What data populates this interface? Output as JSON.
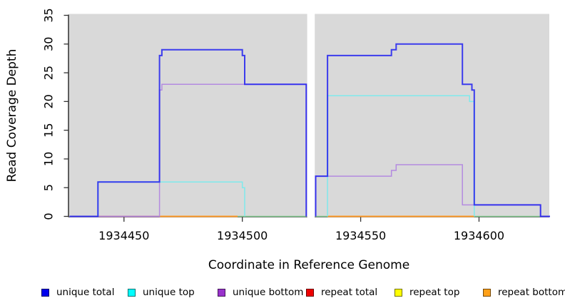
{
  "chart_data": {
    "type": "line",
    "subtype": "step-coverage",
    "title": "",
    "xlabel": "Coordinate in Reference Genome",
    "ylabel": "Read Coverage Depth",
    "xlim": [
      1934426.7,
      1934629.7
    ],
    "ylim": [
      0,
      35
    ],
    "x_ticks": [
      1934450,
      1934500,
      1934550,
      1934600
    ],
    "y_ticks": [
      0,
      5,
      10,
      15,
      20,
      25,
      30,
      35
    ],
    "grid": false,
    "plot_bg": "#d9d9d9",
    "gap_region": {
      "x_from": 1934527.4,
      "x_to": 1934530.6,
      "note": "white band, no data"
    },
    "series": [
      {
        "id": "repeat-total",
        "name": "repeat total",
        "color": "#cc2244",
        "width": 1.6,
        "opacity": 1,
        "segments": [
          [
            [
              1934439,
              0
            ],
            [
              1934465,
              0
            ]
          ]
        ]
      },
      {
        "id": "repeat-top",
        "name": "repeat top",
        "color": "#ffff00",
        "width": 1.6,
        "opacity": 1,
        "segments": []
      },
      {
        "id": "repeat-bottom",
        "name": "repeat bottom",
        "color": "#ff9a28",
        "width": 2,
        "opacity": 1,
        "segments": [
          [
            [
              1934465,
              0
            ],
            [
              1934498,
              0
            ]
          ],
          [
            [
              1934536,
              0
            ],
            [
              1934598,
              0
            ]
          ]
        ]
      },
      {
        "id": "zero-coverage",
        "name": "zero coverage marker",
        "color": "#82c98e",
        "width": 1.6,
        "opacity": 1,
        "segments": [
          [
            [
              1934498,
              0
            ],
            [
              1934527,
              0
            ]
          ],
          [
            [
              1934531,
              0
            ],
            [
              1934536,
              0
            ]
          ],
          [
            [
              1934598,
              0
            ],
            [
              1934630,
              0
            ]
          ]
        ]
      },
      {
        "id": "unique-bottom",
        "name": "unique bottom",
        "color": "#b48ae0",
        "width": 1.5,
        "opacity": 1,
        "segments": [
          [
            [
              1934427,
              0
            ],
            [
              1934465,
              0
            ],
            [
              1934465,
              22
            ],
            [
              1934466,
              22
            ],
            [
              1934466,
              23
            ],
            [
              1934527,
              23
            ],
            [
              1934527,
              0
            ]
          ],
          [
            [
              1934531,
              0
            ],
            [
              1934531,
              7
            ],
            [
              1934563,
              7
            ],
            [
              1934563,
              8
            ],
            [
              1934565,
              8
            ],
            [
              1934565,
              9
            ],
            [
              1934593,
              9
            ],
            [
              1934593,
              2
            ],
            [
              1934626,
              2
            ],
            [
              1934626,
              0
            ],
            [
              1934630,
              0
            ]
          ]
        ]
      },
      {
        "id": "unique-top",
        "name": "unique top",
        "color": "#7fe9ec",
        "width": 1.5,
        "opacity": 1,
        "segments": [
          [
            [
              1934439,
              0
            ],
            [
              1934439,
              6
            ],
            [
              1934500,
              6
            ],
            [
              1934500,
              5
            ],
            [
              1934501,
              5
            ],
            [
              1934501,
              0
            ]
          ],
          [
            [
              1934536,
              0
            ],
            [
              1934536,
              21
            ],
            [
              1934596,
              21
            ],
            [
              1934596,
              20
            ],
            [
              1934598,
              20
            ],
            [
              1934598,
              0
            ]
          ]
        ]
      },
      {
        "id": "unique-total",
        "name": "unique total",
        "color": "#2020f0",
        "width": 2,
        "opacity": 0.85,
        "segments": [
          [
            [
              1934427,
              0
            ],
            [
              1934439,
              0
            ],
            [
              1934439,
              6
            ],
            [
              1934465,
              6
            ],
            [
              1934465,
              28
            ],
            [
              1934466,
              28
            ],
            [
              1934466,
              29
            ],
            [
              1934500,
              29
            ],
            [
              1934500,
              28
            ],
            [
              1934501,
              28
            ],
            [
              1934501,
              23
            ],
            [
              1934527,
              23
            ],
            [
              1934527,
              0
            ]
          ],
          [
            [
              1934531,
              0
            ],
            [
              1934531,
              7
            ],
            [
              1934536,
              7
            ],
            [
              1934536,
              28
            ],
            [
              1934563,
              28
            ],
            [
              1934563,
              29
            ],
            [
              1934565,
              29
            ],
            [
              1934565,
              30
            ],
            [
              1934593,
              30
            ],
            [
              1934593,
              23
            ],
            [
              1934597,
              23
            ],
            [
              1934597,
              22
            ],
            [
              1934598,
              22
            ],
            [
              1934598,
              2
            ],
            [
              1934626,
              2
            ],
            [
              1934626,
              0
            ],
            [
              1934630,
              0
            ]
          ]
        ]
      }
    ],
    "legend": {
      "position": "bottom",
      "entries": [
        {
          "label": "unique total",
          "fill": "#0000ee"
        },
        {
          "label": "unique top",
          "fill": "#00ffff"
        },
        {
          "label": "unique bottom",
          "fill": "#9932cc"
        },
        {
          "label": "repeat total",
          "fill": "#ee0000"
        },
        {
          "label": "repeat top",
          "fill": "#ffff00"
        },
        {
          "label": "repeat bottom",
          "fill": "#ffa018"
        }
      ]
    }
  }
}
